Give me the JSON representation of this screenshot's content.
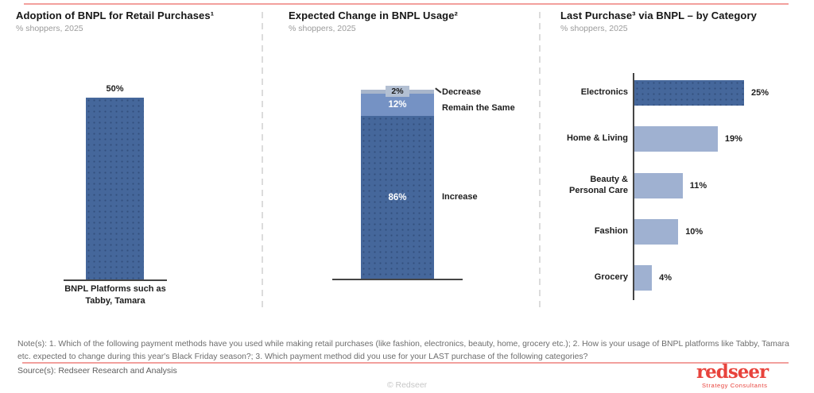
{
  "colors": {
    "dark_blue": "#45679b",
    "medium_blue": "#7592c4",
    "pale_blue": "#a8b6cb",
    "light_blue": "#9fb1d1",
    "accent_red": "#e8433c",
    "salmon_line": "#f2a09d"
  },
  "chart_data": [
    {
      "type": "bar",
      "title": "Adoption of BNPL for Retail Purchases¹",
      "subtitle": "% shoppers, 2025",
      "categories": [
        "BNPL Platforms such as Tabby, Tamara"
      ],
      "values": [
        50
      ],
      "value_labels": [
        "50%"
      ],
      "ylim": [
        0,
        55
      ],
      "grid": false,
      "legend_position": "none"
    },
    {
      "type": "bar",
      "variant": "stacked",
      "title": "Expected Change in BNPL Usage²",
      "subtitle": "% shoppers, 2025",
      "segments_top_to_bottom": [
        {
          "label": "Decrease",
          "value": 2,
          "value_label": "2%"
        },
        {
          "label": "Remain the Same",
          "value": 12,
          "value_label": "12%"
        },
        {
          "label": "Increase",
          "value": 86,
          "value_label": "86%"
        }
      ],
      "ylim": [
        0,
        100
      ],
      "grid": false,
      "legend_position": "right"
    },
    {
      "type": "bar",
      "orientation": "horizontal",
      "title": "Last Purchase³ via BNPL – by Category",
      "subtitle": "% shoppers, 2025",
      "categories": [
        "Electronics",
        "Home & Living",
        "Beauty & Personal Care",
        "Fashion",
        "Grocery"
      ],
      "values": [
        25,
        19,
        11,
        10,
        4
      ],
      "value_labels": [
        "25%",
        "19%",
        "11%",
        "10%",
        "4%"
      ],
      "xlim": [
        0,
        27
      ],
      "grid": false,
      "legend_position": "none"
    }
  ],
  "footer": {
    "notes": "Note(s): 1. Which of the following payment methods have you used while making retail purchases (like fashion, electronics, beauty, home, grocery etc.); 2. How is your usage of BNPL platforms like Tabby, Tamara etc. expected to change during this year's Black Friday season?; 3. Which payment method did you use for your LAST purchase of the following categories?",
    "source": "Source(s): Redseer Research and Analysis",
    "copyright": "© Redseer",
    "logo_word": "redseer",
    "logo_tagline": "Strategy Consultants"
  }
}
